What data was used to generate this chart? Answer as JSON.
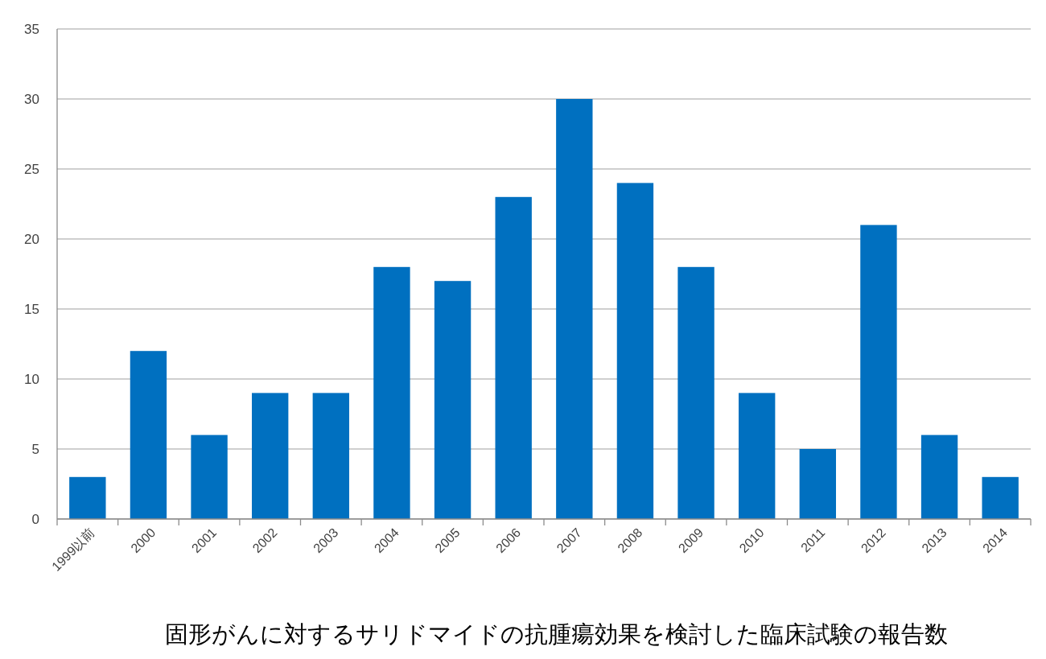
{
  "chart_data": {
    "type": "bar",
    "title": "固形がんに対するサリドマイドの抗腫瘍効果を検討した臨床試験の報告数",
    "categories": [
      "1999以前",
      "2000",
      "2001",
      "2002",
      "2003",
      "2004",
      "2005",
      "2006",
      "2007",
      "2008",
      "2009",
      "2010",
      "2011",
      "2012",
      "2013",
      "2014"
    ],
    "values": [
      3,
      12,
      6,
      9,
      9,
      18,
      17,
      23,
      30,
      24,
      18,
      9,
      5,
      21,
      6,
      3
    ],
    "color": "#0070c0",
    "ylim": [
      0,
      35
    ],
    "yticks": [
      0,
      5,
      10,
      15,
      20,
      25,
      30,
      35
    ],
    "grid": "y"
  }
}
